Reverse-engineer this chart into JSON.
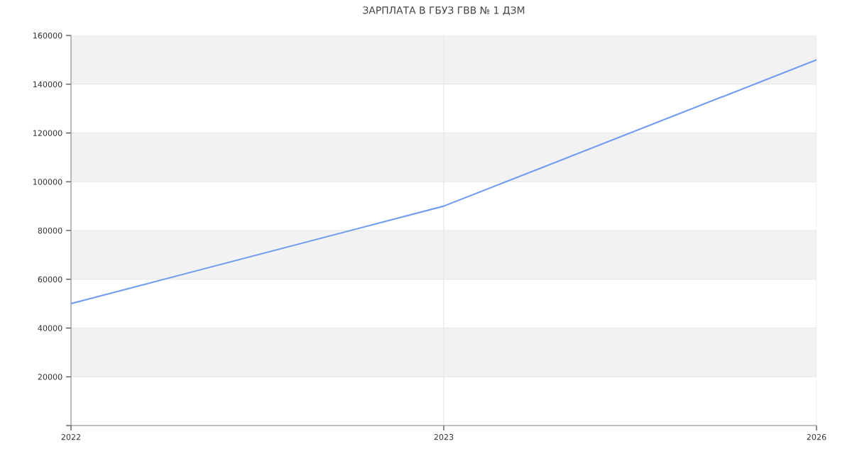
{
  "chart_data": {
    "type": "line",
    "title": "ЗАРПЛАТА В ГБУЗ ГВВ № 1 ДЗМ",
    "categories": [
      "2022",
      "2023",
      "2026"
    ],
    "series": [
      {
        "color": "#6f9cf0",
        "values": [
          50000,
          90000,
          150000
        ]
      }
    ],
    "ylim": [
      0,
      160000
    ],
    "yticks": [
      {
        "value": 0,
        "label": null
      },
      20000,
      40000,
      60000,
      80000,
      100000,
      120000,
      140000,
      160000
    ],
    "bands": [
      {
        "axis": "y",
        "from": 20000,
        "to": 40000,
        "color": "#f2f2f2"
      },
      {
        "axis": "y",
        "from": 60000,
        "to": 80000,
        "color": "#f2f2f2"
      },
      {
        "axis": "y",
        "from": 100000,
        "to": 120000,
        "color": "#f2f2f2"
      },
      {
        "axis": "y",
        "from": 140000,
        "to": 160000,
        "color": "#f2f2f2"
      }
    ],
    "grid": true,
    "marker": "none",
    "line_style": "solid"
  }
}
